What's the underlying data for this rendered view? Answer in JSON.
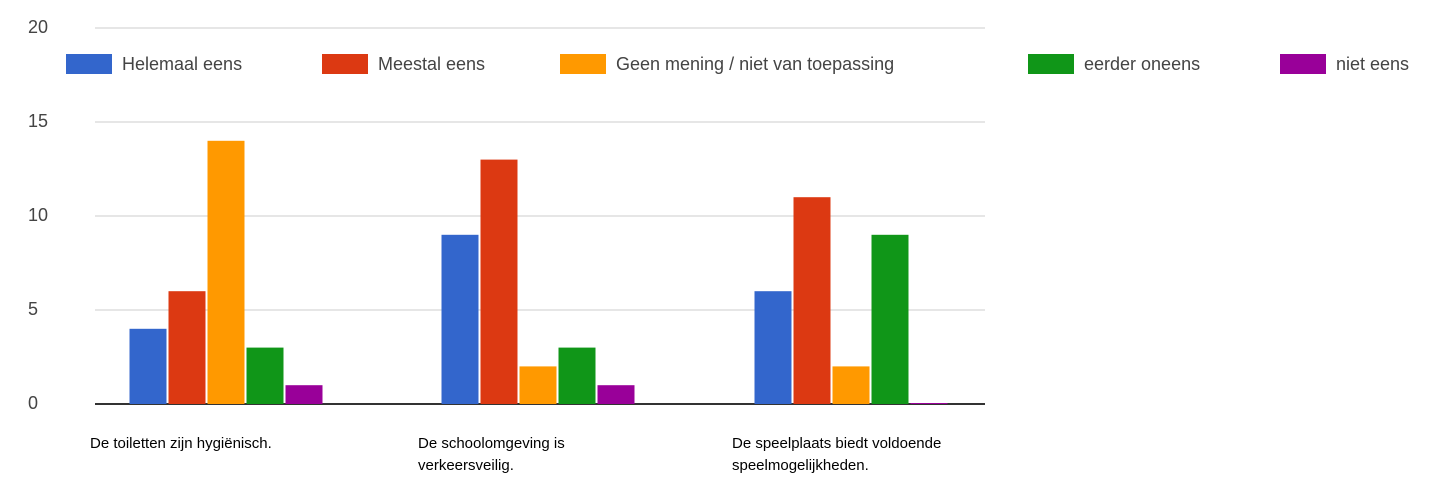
{
  "chart_data": {
    "type": "bar",
    "categories": [
      "De toiletten zijn hygiënisch.",
      "De schoolomgeving is verkeersveilig.",
      "De speelplaats biedt voldoende speelmogelijkheden."
    ],
    "series": [
      {
        "name": "Helemaal eens",
        "color": "#3366cc",
        "values": [
          4,
          9,
          6
        ]
      },
      {
        "name": "Meestal eens",
        "color": "#dc3912",
        "values": [
          6,
          13,
          11
        ]
      },
      {
        "name": "Geen mening / niet van toepassing",
        "color": "#ff9900",
        "values": [
          14,
          2,
          2
        ]
      },
      {
        "name": "eerder oneens",
        "color": "#109618",
        "values": [
          3,
          3,
          9
        ]
      },
      {
        "name": "niet eens",
        "color": "#990099",
        "values": [
          1,
          1,
          0
        ]
      }
    ],
    "ylim": [
      0,
      20
    ],
    "yticks": [
      0,
      5,
      10,
      15,
      20
    ],
    "grid": true,
    "legend": "top"
  }
}
